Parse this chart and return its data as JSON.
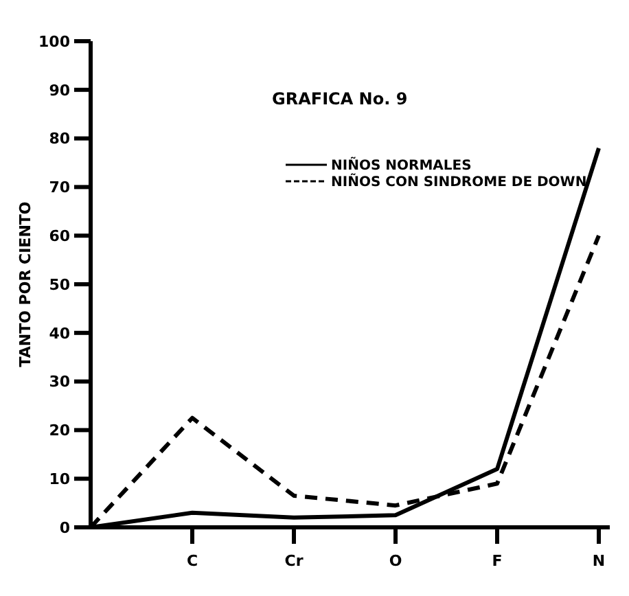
{
  "chart_data": {
    "type": "line",
    "title": "GRAFICA No. 9",
    "ylabel": "TANTO POR CIENTO",
    "categories": [
      null,
      "C",
      "Cr",
      "O",
      "F",
      "N"
    ],
    "ylim": [
      0,
      100
    ],
    "yticks": [
      0,
      10,
      20,
      30,
      40,
      50,
      60,
      70,
      80,
      90,
      100
    ],
    "legend": "top",
    "grid": false,
    "series": [
      {
        "name": "NIÑOS NORMALES",
        "color": "#000000",
        "line_style": "solid",
        "values": [
          0,
          3,
          2,
          2.5,
          12,
          78
        ]
      },
      {
        "name": "NIÑOS CON SINDROME DE DOWN",
        "color": "#000000",
        "line_style": "dashed",
        "values": [
          0,
          22.5,
          6.5,
          4.5,
          9,
          60
        ]
      }
    ]
  }
}
